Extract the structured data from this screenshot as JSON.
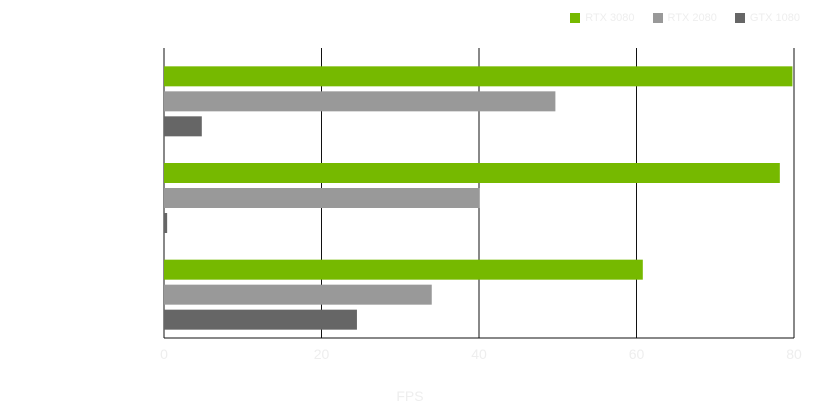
{
  "chart_data": {
    "type": "bar",
    "orientation": "horizontal",
    "categories": [
      "",
      "",
      ""
    ],
    "series": [
      {
        "name": "RTX 3080",
        "color": "#76b900",
        "values": [
          79.8,
          78.2,
          60.8
        ]
      },
      {
        "name": "RTX 2080",
        "color": "#999999",
        "values": [
          49.7,
          40.1,
          34.0
        ]
      },
      {
        "name": "GTX 1080",
        "color": "#666666",
        "values": [
          4.8,
          0.4,
          24.5
        ]
      }
    ],
    "xlabel": "FPS",
    "xlim": [
      0,
      80
    ],
    "xticks": [
      0,
      20,
      40,
      60,
      80
    ],
    "grid": "vertical",
    "legend": "top-right"
  }
}
